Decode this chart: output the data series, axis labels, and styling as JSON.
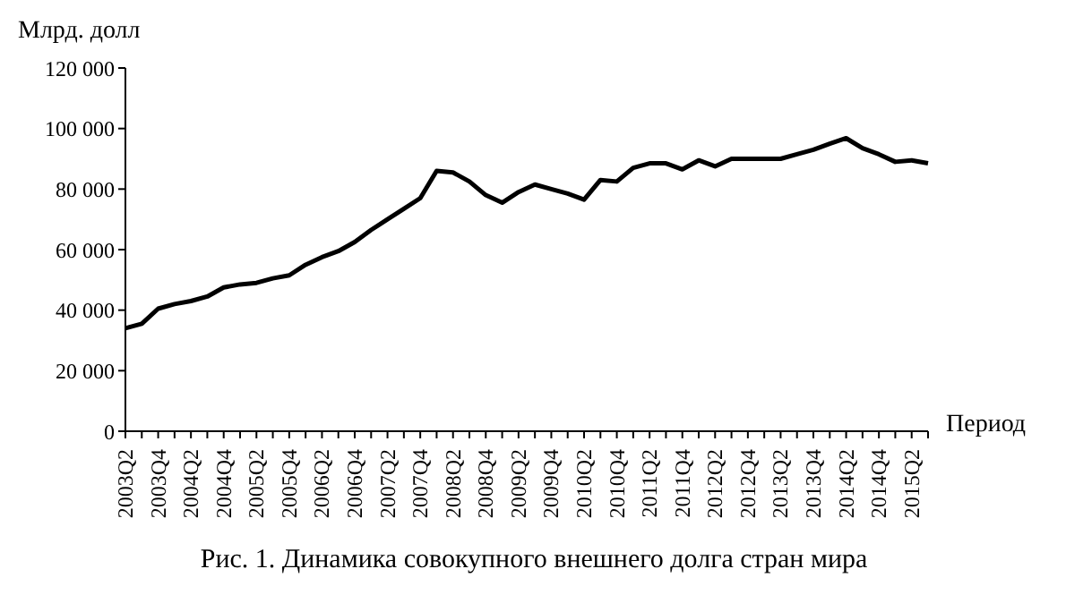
{
  "chart_data": {
    "type": "line",
    "ylabel": "Млрд. долл",
    "xlabel": "Период",
    "annotations": [
      "Рис. 1. Динамика совокупного внешнего долга стран мира"
    ],
    "categories": [
      "2003Q2",
      null,
      "2003Q4",
      null,
      "2004Q2",
      null,
      "2004Q4",
      null,
      "2005Q2",
      null,
      "2005Q4",
      null,
      "2006Q2",
      null,
      "2006Q4",
      null,
      "2007Q2",
      null,
      "2007Q4",
      null,
      "2008Q2",
      null,
      "2008Q4",
      null,
      "2009Q2",
      null,
      "2009Q4",
      null,
      "2010Q2",
      null,
      "2010Q4",
      null,
      "2011Q2",
      null,
      "2011Q4",
      null,
      "2012Q2",
      null,
      "2012Q4",
      null,
      "2013Q2",
      null,
      "2013Q4",
      null,
      "2014Q2",
      null,
      "2014Q4",
      null,
      "2015Q2",
      null
    ],
    "series": [
      {
        "color": "#000000",
        "values": [
          34000,
          35500,
          40500,
          42000,
          43000,
          44500,
          47500,
          48500,
          49000,
          50500,
          51500,
          55000,
          57500,
          59500,
          62500,
          66500,
          70000,
          73500,
          77000,
          86000,
          85500,
          82500,
          78000,
          75500,
          79000,
          81500,
          80000,
          78500,
          76500,
          83000,
          82500,
          87000,
          88500,
          88500,
          86500,
          89500,
          87500,
          90000,
          90000,
          90000,
          90000,
          91500,
          93000,
          95000,
          96800,
          93500,
          91500,
          89000,
          89500,
          88500
        ]
      }
    ],
    "ylim": [
      0,
      120000
    ],
    "yticks": [
      {
        "value": 0,
        "label": "0"
      },
      {
        "value": 20000,
        "label": "20 000"
      },
      {
        "value": 40000,
        "label": "40 000"
      },
      {
        "value": 60000,
        "label": "60 000"
      },
      {
        "value": 80000,
        "label": "80 000"
      },
      {
        "value": 100000,
        "label": "100 000"
      },
      {
        "value": 120000,
        "label": "120 000"
      }
    ],
    "grid": false,
    "legend": false,
    "marker": "none",
    "line_style": "solid"
  }
}
